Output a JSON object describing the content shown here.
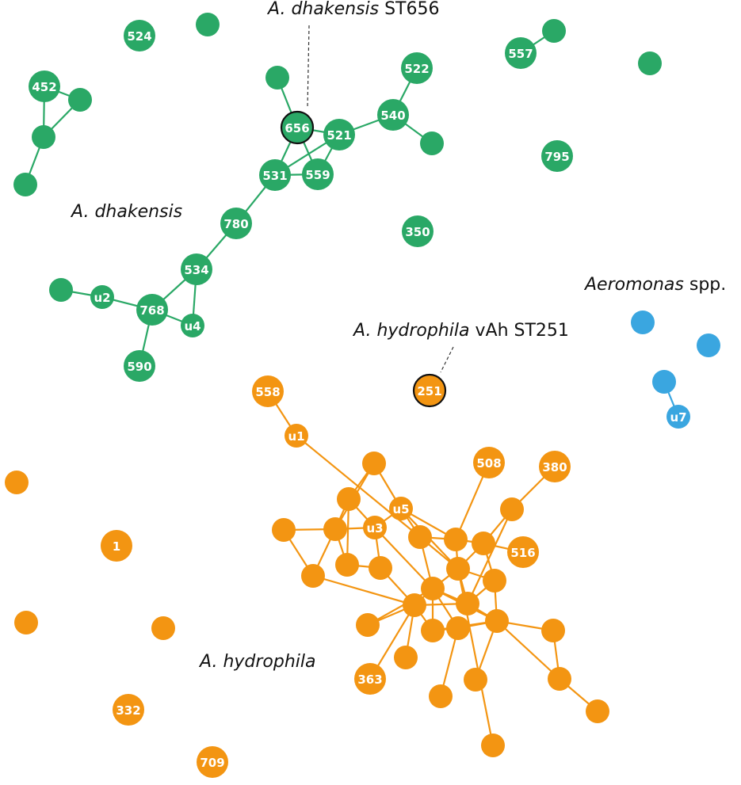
{
  "group_labels": [
    {
      "species": "A. dhakensis"
    },
    {
      "species": "Aeromonas",
      "suffix": "spp."
    },
    {
      "species": "A. hydrophila"
    }
  ],
  "annotations": [
    {
      "species": "A. dhakensis",
      "strain": "ST656"
    },
    {
      "species": "A. hydrophila",
      "strain": "vAh ST251"
    }
  ],
  "node_labels": [
    "524",
    "452",
    "656",
    "521",
    "522",
    "540",
    "559",
    "531",
    "795",
    "780",
    "350",
    "534",
    "u2",
    "768",
    "u4",
    "590",
    "557",
    "u7",
    "251",
    "558",
    "u1",
    "508",
    "380",
    "u5",
    "u3",
    "516",
    "1",
    "363",
    "332",
    "709"
  ]
}
